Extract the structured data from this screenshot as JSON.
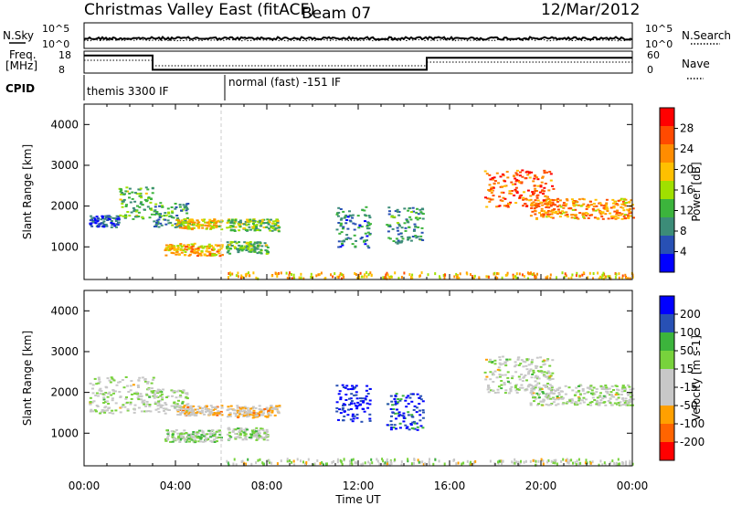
{
  "header": {
    "title": "Christmas Valley East (fitACF)",
    "beam": "Beam 07",
    "date": "12/Mar/2012"
  },
  "panels": {
    "nsky_label": "N.Sky",
    "nsearch_label": "N.Search",
    "noise_ticks": [
      "10^5",
      "10^0"
    ],
    "freq_label": [
      "Freq.",
      "[MHz]"
    ],
    "freq_ticks": [
      "18",
      "8"
    ],
    "nave_label": "Nave",
    "nave_ticks": [
      "60",
      "0"
    ],
    "cpid_label": "CPID",
    "cpid_segments": [
      {
        "start_h": 0,
        "end_h": 6,
        "text": "themis 3300 IF"
      },
      {
        "start_h": 6,
        "end_h": 24,
        "text": "normal (fast) -151 IF"
      }
    ],
    "freq_values": [
      {
        "start_h": 0,
        "end_h": 3,
        "value": 16
      },
      {
        "start_h": 3,
        "end_h": 15,
        "value": 9.5
      },
      {
        "start_h": 15,
        "end_h": 24,
        "value": 15
      }
    ]
  },
  "axes": {
    "ylabel": "Slant Range [km]",
    "yticks": [
      "4000",
      "3000",
      "2000",
      "1000"
    ],
    "xlabel": "Time UT",
    "xticks": [
      "00:00",
      "04:00",
      "08:00",
      "12:00",
      "16:00",
      "20:00",
      "00:00"
    ]
  },
  "chart_data": [
    {
      "type": "heatmap",
      "name_printed": "Power [dB]",
      "x": "time (hours UT)",
      "xlim": [
        0,
        24
      ],
      "ylim": [
        200,
        4500
      ],
      "colorbar": {
        "label": "Power [dB]",
        "ticks": [
          "28",
          "24",
          "20",
          "16",
          "12",
          "8",
          "4"
        ],
        "colors": [
          "#ff0000",
          "#ff4a00",
          "#ff8c00",
          "#ffc000",
          "#a0e000",
          "#3cb43c",
          "#3c8c78",
          "#2850b4",
          "#0000ff"
        ]
      },
      "regions": [
        {
          "t0": 0.2,
          "t1": 1.5,
          "r0": 1500,
          "r1": 1800,
          "level": 0.85
        },
        {
          "t0": 1.5,
          "t1": 3.0,
          "r0": 1700,
          "r1": 2500,
          "level": 0.6
        },
        {
          "t0": 3.0,
          "t1": 4.5,
          "r0": 1500,
          "r1": 2100,
          "level": 0.7
        },
        {
          "t0": 4.0,
          "t1": 6.0,
          "r0": 1450,
          "r1": 1700,
          "level": 0.4
        },
        {
          "t0": 3.5,
          "t1": 6.0,
          "r0": 800,
          "r1": 1100,
          "level": 0.35
        },
        {
          "t0": 6.2,
          "t1": 8.5,
          "r0": 1400,
          "r1": 1700,
          "level": 0.55
        },
        {
          "t0": 6.2,
          "t1": 8.0,
          "r0": 850,
          "r1": 1150,
          "level": 0.6
        },
        {
          "t0": 11.0,
          "t1": 12.5,
          "r0": 1000,
          "r1": 2000,
          "level": 0.75
        },
        {
          "t0": 13.2,
          "t1": 14.8,
          "r0": 1100,
          "r1": 2000,
          "level": 0.7
        },
        {
          "t0": 19.5,
          "t1": 24.0,
          "r0": 1700,
          "r1": 2200,
          "level": 0.3
        },
        {
          "t0": 17.5,
          "t1": 20.5,
          "r0": 2000,
          "r1": 2900,
          "level": 0.2
        }
      ]
    },
    {
      "type": "heatmap",
      "name_printed": "Velocity [m s-1]",
      "x": "time (hours UT)",
      "xlim": [
        0,
        24
      ],
      "ylim": [
        200,
        4500
      ],
      "colorbar": {
        "label": "Velocity [m s-1]",
        "ticks": [
          "200",
          "100",
          "50",
          "15",
          "-15",
          "-50",
          "-100",
          "-200"
        ],
        "colors": [
          "#0000ff",
          "#2850b4",
          "#3cb43c",
          "#78d23c",
          "#c8c8c8",
          "#c8c8c8",
          "#ffa000",
          "#ff6400",
          "#ff0000"
        ]
      },
      "regions": [
        {
          "t0": 0.2,
          "t1": 3.0,
          "r0": 1500,
          "r1": 2400,
          "level": 0.5
        },
        {
          "t0": 3.0,
          "t1": 4.5,
          "r0": 1500,
          "r1": 2100,
          "level": 0.5
        },
        {
          "t0": 4.0,
          "t1": 6.0,
          "r0": 1450,
          "r1": 1700,
          "level": 0.65
        },
        {
          "t0": 3.5,
          "t1": 6.0,
          "r0": 800,
          "r1": 1100,
          "level": 0.45
        },
        {
          "t0": 6.2,
          "t1": 8.5,
          "r0": 1400,
          "r1": 1700,
          "level": 0.62
        },
        {
          "t0": 6.2,
          "t1": 8.0,
          "r0": 850,
          "r1": 1150,
          "level": 0.45
        },
        {
          "t0": 11.0,
          "t1": 12.5,
          "r0": 1300,
          "r1": 2200,
          "level": 0.05
        },
        {
          "t0": 13.2,
          "t1": 14.8,
          "r0": 1100,
          "r1": 2000,
          "level": 0.12
        },
        {
          "t0": 19.5,
          "t1": 24.0,
          "r0": 1700,
          "r1": 2200,
          "level": 0.5
        },
        {
          "t0": 17.5,
          "t1": 20.5,
          "r0": 2000,
          "r1": 2900,
          "level": 0.5
        }
      ]
    }
  ]
}
